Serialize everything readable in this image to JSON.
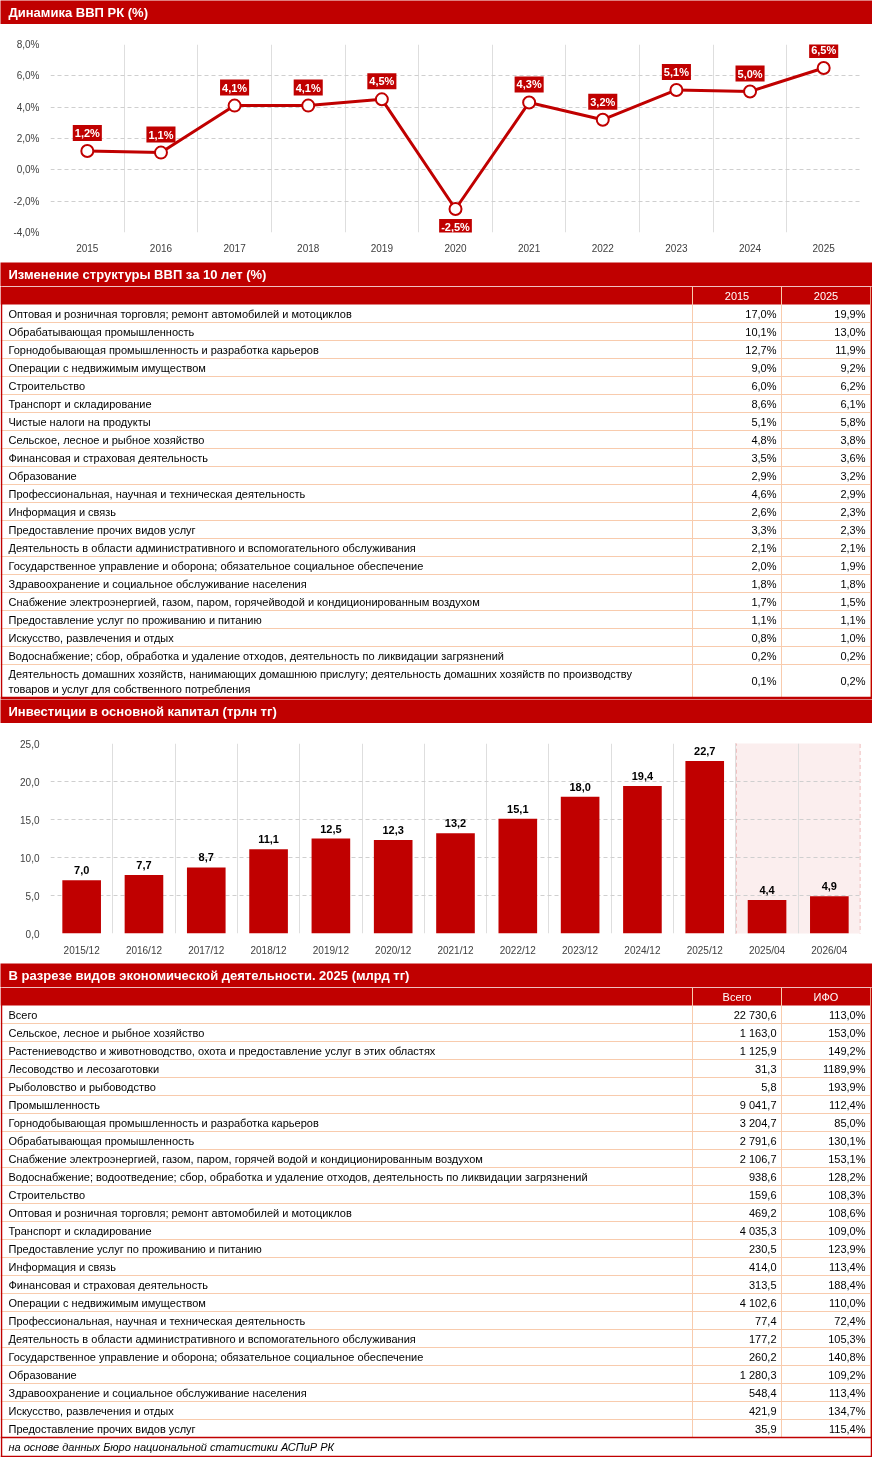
{
  "chart_data": [
    {
      "type": "line",
      "title": "Динамика ВВП РК (%)",
      "categories": [
        "2015",
        "2016",
        "2017",
        "2018",
        "2019",
        "2020",
        "2021",
        "2022",
        "2023",
        "2024",
        "2025"
      ],
      "values": [
        1.2,
        1.1,
        4.1,
        4.1,
        4.5,
        -2.5,
        4.3,
        3.2,
        5.1,
        5.0,
        6.5
      ],
      "value_labels": [
        "1,2%",
        "1,1%",
        "4,1%",
        "4,1%",
        "4,5%",
        "-2,5%",
        "4,3%",
        "3,2%",
        "5,1%",
        "5,0%",
        "6,5%"
      ],
      "color": "#c00000",
      "ylim": [
        -4,
        8
      ],
      "yticks": [
        {
          "value": -4,
          "label": "-4,0%"
        },
        {
          "value": -2,
          "label": "-2,0%"
        },
        {
          "value": 0,
          "label": "0,0%"
        },
        {
          "value": 2,
          "label": "2,0%"
        },
        {
          "value": 4,
          "label": "4,0%"
        },
        {
          "value": 6,
          "label": "6,0%"
        },
        {
          "value": 8,
          "label": "8,0%"
        }
      ],
      "grid": true,
      "marker": "circle",
      "line_style": "solid"
    },
    {
      "type": "other",
      "title": "Изменение структуры ВВП за 10 лет (%)",
      "categories": [
        "Оптовая и розничная торговля; ремонт автомобилей и мотоциклов",
        "Обрабатывающая промышленность",
        "Горнодобывающая промышленность и разработка карьеров",
        "Операции с недвижимым имуществом",
        "Строительство",
        "Транспорт и складирование",
        "Чистые налоги на продукты",
        "Сельское, лесное и рыбное хозяйство",
        "Финансовая и страховая деятельность",
        "Образование",
        "Профессиональная, научная и техническая деятельность",
        "Информация и связь",
        "Предоставление прочих видов услуг",
        "Деятельность в области административного и вспомогательного обслуживания",
        "Государственное управление и оборона; обязательное социальное обеспечение",
        "Здравоохранение и социальное обслуживание населения",
        "Снабжение электроэнергией, газом, паром, горячейводой и кондиционированным воздухом",
        "Предоставление услуг по проживанию и питанию",
        "Искусство, развлечения и отдых",
        "Водоснабжение; сбор, обработка и удаление отходов, деятельность по ликвидации загрязнений",
        "Деятельность домашних хозяйств, нанимающих домашнюю прислугу; деятельность домашних хозяйств по производству товаров и услуг для собственного потребления"
      ],
      "series": [
        {
          "name": "2015",
          "values": [
            17.0,
            10.1,
            12.7,
            9.0,
            6.0,
            8.6,
            5.1,
            4.8,
            3.5,
            2.9,
            4.6,
            2.6,
            3.3,
            2.1,
            2.0,
            1.8,
            1.7,
            1.1,
            0.8,
            0.2,
            0.1
          ],
          "value_labels": [
            "17,0%",
            "10,1%",
            "12,7%",
            "9,0%",
            "6,0%",
            "8,6%",
            "5,1%",
            "4,8%",
            "3,5%",
            "2,9%",
            "4,6%",
            "2,6%",
            "3,3%",
            "2,1%",
            "2,0%",
            "1,8%",
            "1,7%",
            "1,1%",
            "0,8%",
            "0,2%",
            "0,1%"
          ]
        },
        {
          "name": "2025",
          "values": [
            19.9,
            13.0,
            11.9,
            9.2,
            6.2,
            6.1,
            5.8,
            3.8,
            3.6,
            3.2,
            2.9,
            2.3,
            2.3,
            2.1,
            1.9,
            1.8,
            1.5,
            1.1,
            1.0,
            0.2,
            0.2
          ],
          "value_labels": [
            "19,9%",
            "13,0%",
            "11,9%",
            "9,2%",
            "6,2%",
            "6,1%",
            "5,8%",
            "3,8%",
            "3,6%",
            "3,2%",
            "2,9%",
            "2,3%",
            "2,3%",
            "2,1%",
            "1,9%",
            "1,8%",
            "1,5%",
            "1,1%",
            "1,0%",
            "0,2%",
            "0,2%"
          ]
        }
      ]
    },
    {
      "type": "bar",
      "title": "Инвестиции в основной капитал (трлн тг)",
      "categories": [
        "2015/12",
        "2016/12",
        "2017/12",
        "2018/12",
        "2019/12",
        "2020/12",
        "2021/12",
        "2022/12",
        "2023/12",
        "2024/12",
        "2025/12",
        "2025/04",
        "2026/04"
      ],
      "values": [
        7.0,
        7.7,
        8.7,
        11.1,
        12.5,
        12.3,
        13.2,
        15.1,
        18.0,
        19.4,
        22.7,
        4.4,
        4.9
      ],
      "value_labels": [
        "7,0",
        "7,7",
        "8,7",
        "11,1",
        "12,5",
        "12,3",
        "13,2",
        "15,1",
        "18,0",
        "19,4",
        "22,7",
        "4,4",
        "4,9"
      ],
      "color": "#c00000",
      "ylim": [
        0,
        25
      ],
      "yticks": [
        {
          "value": 0,
          "label": "0,0"
        },
        {
          "value": 5,
          "label": "5,0"
        },
        {
          "value": 10,
          "label": "10,0"
        },
        {
          "value": 15,
          "label": "15,0"
        },
        {
          "value": 20,
          "label": "20,0"
        },
        {
          "value": 25,
          "label": "25,0"
        }
      ],
      "grid": true,
      "bands": [
        {
          "axis": "x",
          "from": "2025/04",
          "to": "2026/04",
          "color": "#fbeeee"
        }
      ]
    },
    {
      "type": "other",
      "title": "В разрезе видов экономической деятельности. 2025 (млрд тг)",
      "categories": [
        "Всего",
        "Сельское, лесное и рыбное хозяйство",
        "Растениеводство и животноводство, охота и предоставление услуг в этих областях",
        "Лесоводство и лесозаготовки",
        "Рыболовство и рыбоводство",
        "Промышленность",
        "Горнодобывающая промышленность и разработка карьеров",
        "Обрабатывающая промышленность",
        "Снабжение электроэнергией, газом, паром, горячей водой и кондиционированным воздухом",
        "Водоснабжение; водоотведение; сбор, обработка и удаление отходов, деятельность по ликвидации загрязнений",
        "Строительство",
        "Оптовая и розничная торговля; ремонт автомобилей и мотоциклов",
        "Транспорт и складирование",
        "Предоставление услуг по проживанию и питанию",
        "Информация и связь",
        "Финансовая и страховая деятельность",
        "Операции с недвижимым имуществом",
        "Профессиональная, научная и техническая деятельность",
        "Деятельность в области административного и вспомогательного обслуживания",
        "Государственное управление и оборона; обязательное социальное обеспечение",
        "Образование",
        "Здравоохранение и социальное обслуживание населения",
        "Искусство, развлечения и отдых",
        "Предоставление прочих видов услуг"
      ],
      "series": [
        {
          "name": "Всего",
          "values": [
            22730.6,
            1163.0,
            1125.9,
            31.3,
            5.8,
            9041.7,
            3204.7,
            2791.6,
            2106.7,
            938.6,
            159.6,
            469.2,
            4035.3,
            230.5,
            414.0,
            313.5,
            4102.6,
            77.4,
            177.2,
            260.2,
            1280.3,
            548.4,
            421.9,
            35.9
          ],
          "value_labels": [
            "22 730,6",
            "1 163,0",
            "1 125,9",
            "31,3",
            "5,8",
            "9 041,7",
            "3 204,7",
            "2 791,6",
            "2 106,7",
            "938,6",
            "159,6",
            "469,2",
            "4 035,3",
            "230,5",
            "414,0",
            "313,5",
            "4 102,6",
            "77,4",
            "177,2",
            "260,2",
            "1 280,3",
            "548,4",
            "421,9",
            "35,9"
          ]
        },
        {
          "name": "ИФО",
          "values": [
            113.0,
            153.0,
            149.2,
            1189.9,
            193.9,
            112.4,
            85.0,
            130.1,
            153.1,
            128.2,
            108.3,
            108.6,
            109.0,
            123.9,
            113.4,
            188.4,
            110.0,
            72.4,
            105.3,
            140.8,
            109.2,
            113.4,
            134.7,
            115.4
          ],
          "value_labels": [
            "113,0%",
            "153,0%",
            "149,2%",
            "1189,9%",
            "193,9%",
            "112,4%",
            "85,0%",
            "130,1%",
            "153,1%",
            "128,2%",
            "108,3%",
            "108,6%",
            "109,0%",
            "123,9%",
            "113,4%",
            "188,4%",
            "110,0%",
            "72,4%",
            "105,3%",
            "140,8%",
            "109,2%",
            "113,4%",
            "134,7%",
            "115,4%"
          ]
        }
      ],
      "annotations": [
        "на основе данных Бюро национальной статистики АСПиР РК"
      ]
    }
  ]
}
